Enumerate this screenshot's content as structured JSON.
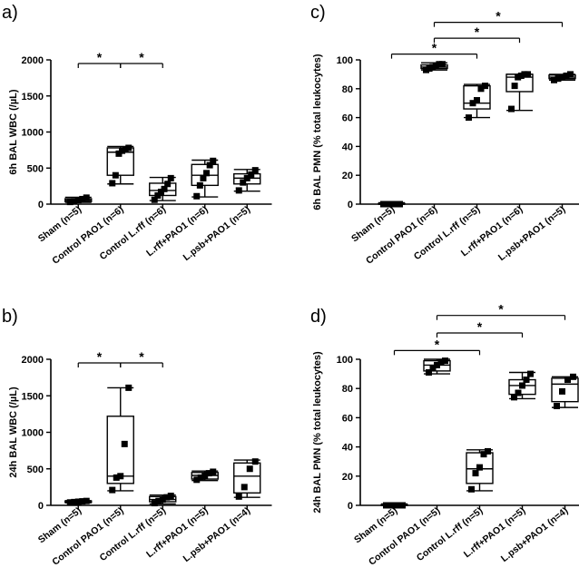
{
  "chart_data": [
    {
      "panel_label": "a)",
      "type": "box",
      "ylabel": "6h BAL WBC (/µL)",
      "ylim": [
        0,
        2000
      ],
      "yticks": [
        0,
        500,
        1000,
        1500,
        2000
      ],
      "categories": [
        "Sham (n=5)",
        "Control PAO1 (n=6)",
        "Control L.rff (n=6)",
        "L.rff+PAO1 (n=6)",
        "L.psb+PAO1 (n=5)"
      ],
      "boxes": [
        {
          "min": 25,
          "q1": 35,
          "median": 55,
          "q3": 75,
          "max": 95
        },
        {
          "min": 280,
          "q1": 400,
          "median": 720,
          "q3": 780,
          "max": 800
        },
        {
          "min": 50,
          "q1": 120,
          "median": 190,
          "q3": 290,
          "max": 370
        },
        {
          "min": 100,
          "q1": 260,
          "median": 400,
          "q3": 550,
          "max": 610
        },
        {
          "min": 180,
          "q1": 280,
          "median": 360,
          "q3": 420,
          "max": 480
        }
      ],
      "points": [
        [
          30,
          40,
          55,
          70,
          90
        ],
        [
          290,
          400,
          700,
          740,
          760,
          780
        ],
        [
          60,
          120,
          170,
          210,
          280,
          360
        ],
        [
          110,
          260,
          360,
          430,
          540,
          600
        ],
        [
          190,
          300,
          360,
          410,
          470
        ]
      ],
      "brackets": [
        {
          "from": 0,
          "to": 1,
          "y": 1950,
          "label": "*"
        },
        {
          "from": 1,
          "to": 2,
          "y": 1950,
          "label": "*"
        }
      ]
    },
    {
      "panel_label": "c)",
      "type": "box",
      "ylabel": "6h BAL PMN (% total leukocytes)",
      "ylim": [
        0,
        100
      ],
      "yticks": [
        0,
        20,
        40,
        60,
        80,
        100
      ],
      "categories": [
        "Sham (n=5)",
        "Control PAO1 (n=6)",
        "Control L.rff (n=5)",
        "L.rff+PAO1 (n=6)",
        "L.psb+PAO1 (n=5)"
      ],
      "boxes": [
        {
          "min": 0,
          "q1": 0,
          "median": 0,
          "q3": 0.5,
          "max": 1
        },
        {
          "min": 93,
          "q1": 94,
          "median": 95,
          "q3": 96.5,
          "max": 98
        },
        {
          "min": 60,
          "q1": 66,
          "median": 70,
          "q3": 82,
          "max": 83
        },
        {
          "min": 65,
          "q1": 78,
          "median": 88,
          "q3": 90,
          "max": 90
        },
        {
          "min": 86,
          "q1": 87,
          "median": 88,
          "q3": 89.5,
          "max": 90
        }
      ],
      "points": [
        [
          0,
          0,
          0,
          0,
          0
        ],
        [
          93,
          94,
          95,
          96,
          97,
          97
        ],
        [
          60,
          70,
          72,
          80,
          82
        ],
        [
          66,
          82,
          88,
          89,
          90,
          90
        ],
        [
          86,
          87,
          88,
          89,
          90
        ]
      ],
      "brackets": [
        {
          "from": 0,
          "to": 2,
          "y": 104,
          "label": "*"
        },
        {
          "from": 1,
          "to": 3,
          "y": 115,
          "label": "*"
        },
        {
          "from": 1,
          "to": 4,
          "y": 126,
          "label": "*"
        }
      ]
    },
    {
      "panel_label": "b)",
      "type": "box",
      "ylabel": "24h BAL WBC (/µL)",
      "ylim": [
        0,
        2000
      ],
      "yticks": [
        0,
        500,
        1000,
        1500,
        2000
      ],
      "categories": [
        "Sham (n=5)",
        "Control PAO1 (n=5)",
        "Control L.rff (n=5)",
        "L.rff+PAO1 (n=5)",
        "L.psb+PAO1 (n=4)"
      ],
      "boxes": [
        {
          "min": 35,
          "q1": 40,
          "median": 50,
          "q3": 60,
          "max": 65
        },
        {
          "min": 200,
          "q1": 300,
          "median": 400,
          "q3": 1220,
          "max": 1610
        },
        {
          "min": 20,
          "q1": 50,
          "median": 80,
          "q3": 120,
          "max": 140
        },
        {
          "min": 340,
          "q1": 360,
          "median": 410,
          "q3": 450,
          "max": 470
        },
        {
          "min": 110,
          "q1": 170,
          "median": 400,
          "q3": 580,
          "max": 620
        }
      ],
      "points": [
        [
          40,
          45,
          50,
          55,
          60
        ],
        [
          210,
          380,
          400,
          840,
          1610
        ],
        [
          30,
          60,
          80,
          110,
          130
        ],
        [
          350,
          380,
          410,
          440,
          460
        ],
        [
          120,
          250,
          500,
          600
        ]
      ],
      "brackets": [
        {
          "from": 0,
          "to": 1,
          "y": 1950,
          "label": "*"
        },
        {
          "from": 1,
          "to": 2,
          "y": 1950,
          "label": "*"
        }
      ]
    },
    {
      "panel_label": "d)",
      "type": "box",
      "ylabel": "24h BAL PMN (% total leukocytes)",
      "ylim": [
        0,
        100
      ],
      "yticks": [
        0,
        20,
        40,
        60,
        80,
        100
      ],
      "categories": [
        "Sham (n=5)",
        "Control PAO1 (n=5)",
        "Control L.rff (n=5)",
        "L.rff+PAO1 (n=5)",
        "L.psb+PAO1 (n=4)"
      ],
      "boxes": [
        {
          "min": 0,
          "q1": 0,
          "median": 0,
          "q3": 0.5,
          "max": 1
        },
        {
          "min": 90,
          "q1": 92,
          "median": 96,
          "q3": 99,
          "max": 100
        },
        {
          "min": 10,
          "q1": 15,
          "median": 25,
          "q3": 36,
          "max": 38
        },
        {
          "min": 73,
          "q1": 76,
          "median": 82,
          "q3": 86,
          "max": 91
        },
        {
          "min": 67,
          "q1": 71,
          "median": 83,
          "q3": 87,
          "max": 88
        }
      ],
      "points": [
        [
          0,
          0,
          0,
          0,
          0
        ],
        [
          91,
          94,
          96,
          98,
          99
        ],
        [
          11,
          22,
          26,
          35,
          37
        ],
        [
          74,
          77,
          82,
          86,
          90
        ],
        [
          68,
          78,
          86,
          88
        ]
      ],
      "brackets": [
        {
          "from": 0,
          "to": 2,
          "y": 106,
          "label": "*"
        },
        {
          "from": 1,
          "to": 3,
          "y": 118,
          "label": "*"
        },
        {
          "from": 1,
          "to": 4,
          "y": 130,
          "label": "*"
        }
      ]
    }
  ]
}
